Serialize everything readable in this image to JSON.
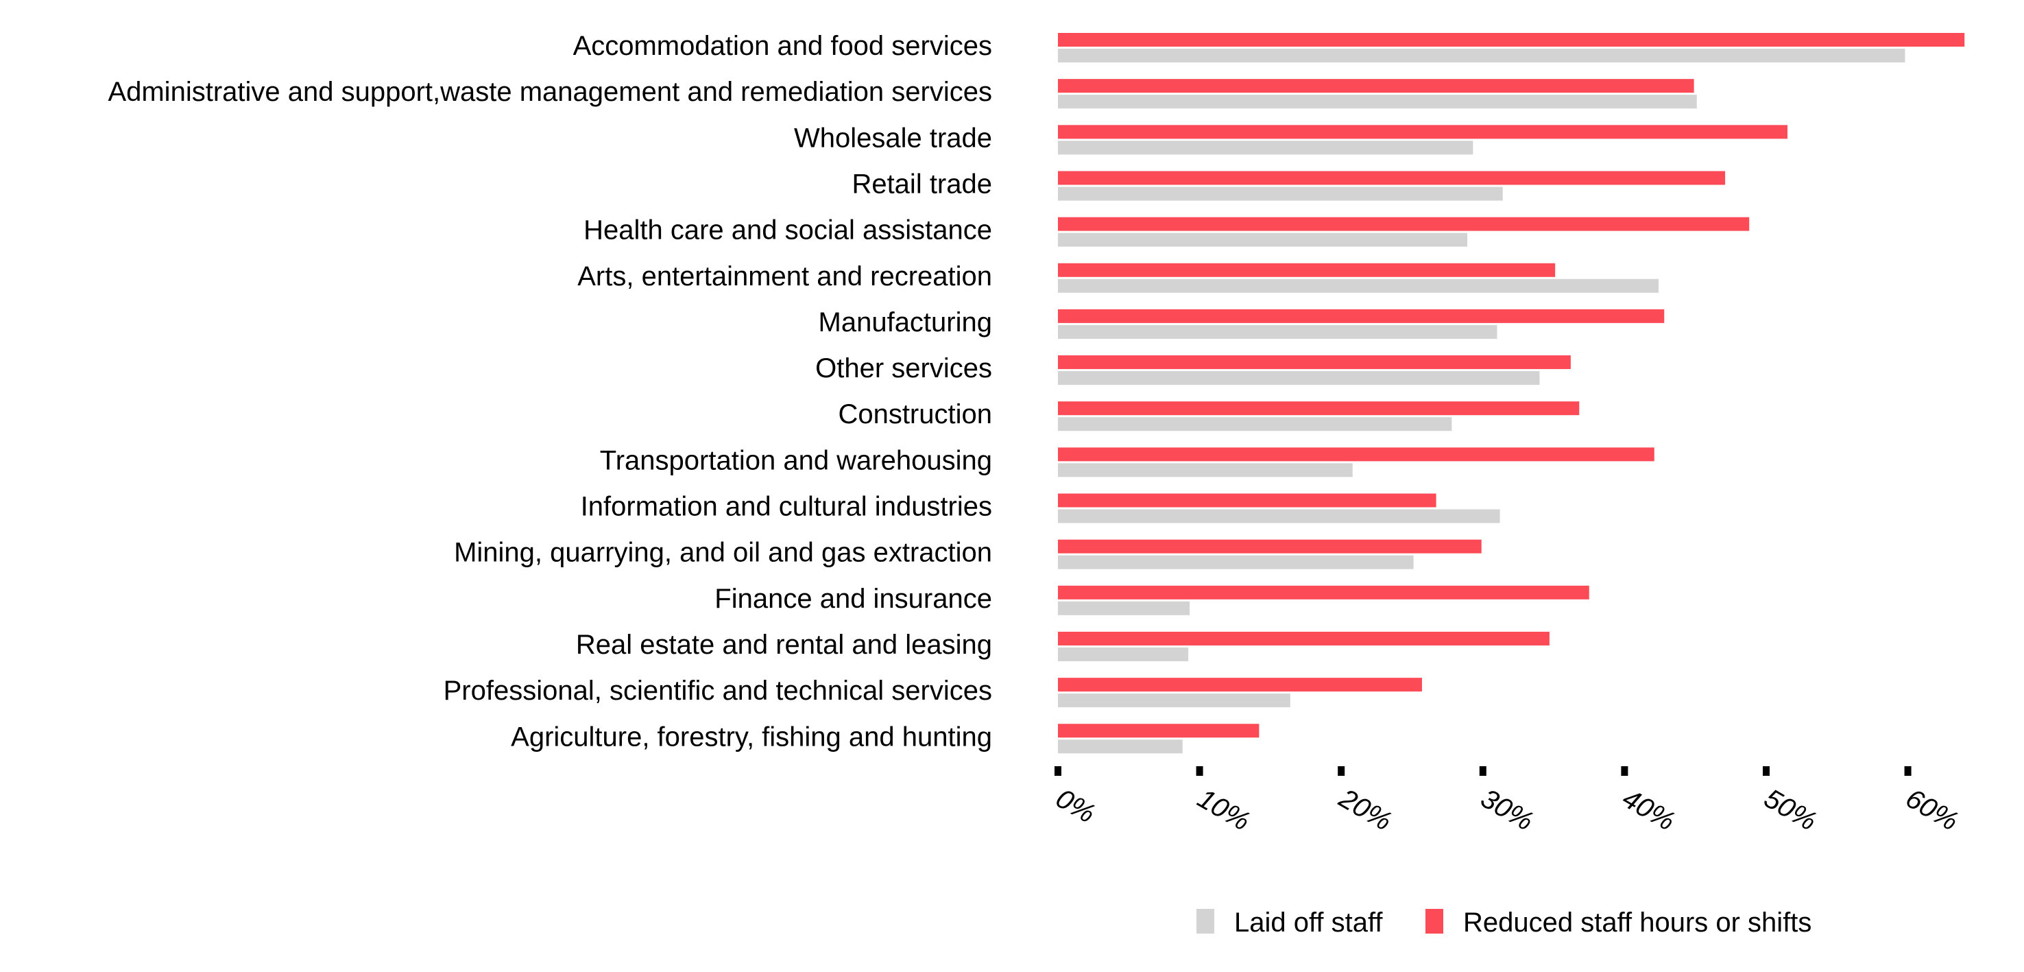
{
  "colors": {
    "laid_off": "#d3d3d3",
    "reduced": "#fc4a57",
    "tick": "#000000",
    "background": "#ffffff"
  },
  "chart_data": {
    "type": "bar",
    "orientation": "horizontal",
    "categories": [
      "Accommodation and food services",
      "Administrative and support,waste management and remediation services",
      "Wholesale trade",
      "Retail trade",
      "Health care and social assistance",
      "Arts, entertainment and recreation",
      "Manufacturing",
      "Other services",
      "Construction",
      "Transportation and warehousing",
      "Information and cultural industries",
      "Mining, quarrying, and oil and gas extraction",
      "Finance and insurance",
      "Real estate and rental and leasing",
      "Professional, scientific and technical services",
      "Agriculture, forestry, fishing and hunting"
    ],
    "series": [
      {
        "name": "Reduced staff hours or shifts",
        "values": [
          64.0,
          44.9,
          51.5,
          47.1,
          48.8,
          35.1,
          42.8,
          36.2,
          36.8,
          42.1,
          26.7,
          29.9,
          37.5,
          34.7,
          25.7,
          14.2
        ]
      },
      {
        "name": "Laid off staff",
        "values": [
          59.8,
          45.1,
          29.3,
          31.4,
          28.9,
          42.4,
          31.0,
          34.0,
          27.8,
          20.8,
          31.2,
          25.1,
          9.3,
          9.2,
          16.4,
          8.8
        ]
      }
    ],
    "xlim": [
      0,
      64
    ],
    "x_ticks": [
      "0%",
      "10%",
      "20%",
      "30%",
      "40%",
      "50%",
      "60%"
    ],
    "x_tick_values": [
      0,
      10,
      20,
      30,
      40,
      50,
      60
    ],
    "legend": {
      "position": "bottom-right",
      "items": [
        "Laid off staff",
        "Reduced staff hours or shifts"
      ]
    },
    "grid": false
  }
}
